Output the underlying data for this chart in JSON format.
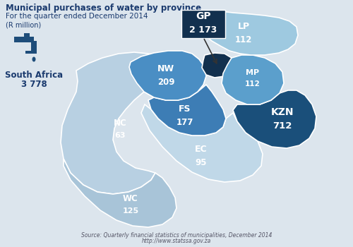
{
  "title": "Municipal purchases of water by province",
  "subtitle": "For the quarter ended December 2014",
  "unit": "(R million)",
  "source_line1": "Source: Quarterly financial statistics of municipalities, December 2014",
  "source_line2": "http://www.statssa.gov.za",
  "total_label": "South Africa",
  "total_value": "3 778",
  "bg_color": "#dce5ed",
  "province_colors": {
    "WC": "#a8c4d8",
    "NC": "#b8d0e2",
    "EC": "#c0d8e8",
    "FS": "#3d7db5",
    "NW": "#4a8ec4",
    "KZN": "#1a4f7a",
    "GP": "#12304e",
    "MP": "#5b9fcc",
    "LP": "#9ec9e0"
  },
  "text_dark": "#1a3a6e",
  "text_white": "#ffffff",
  "arrow_color": "#444444",
  "source_color": "#555566",
  "faucet_color": "#1e4d7a"
}
